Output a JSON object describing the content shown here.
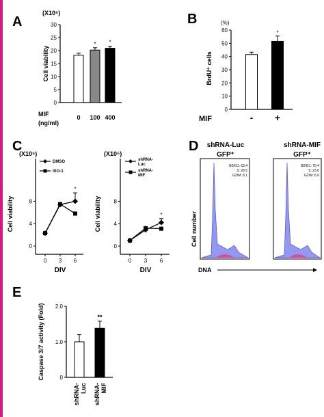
{
  "colors": {
    "edge_bar": "#d81b7a",
    "bar_open": "#ffffff",
    "bar_gray": "#888888",
    "bar_black": "#000000",
    "hist_fill": "#8a8df0",
    "hist_pink": "#e0408c"
  },
  "chart_data": [
    {
      "id": "A",
      "type": "bar",
      "panel_label": "A",
      "ylabel": "Cell viability",
      "y_unit": "(X10⁵)",
      "ylim": [
        0,
        30
      ],
      "yticks": [
        "0",
        "5",
        "10",
        "15",
        "20",
        "25",
        "30"
      ],
      "row_label": "MIF",
      "row_unit": "(ng/ml)",
      "categories": [
        "0",
        "100",
        "400"
      ],
      "values": [
        18.2,
        20.2,
        20.9
      ],
      "errors": [
        0.8,
        0.9,
        0.8
      ],
      "significance": [
        "",
        "*",
        "*"
      ]
    },
    {
      "id": "B",
      "type": "bar",
      "panel_label": "B",
      "ylabel": "BrdU⁺ cells",
      "y_unit": "(%)",
      "ylim": [
        0,
        60
      ],
      "yticks": [
        "0",
        "10",
        "20",
        "30",
        "40",
        "50",
        "60"
      ],
      "row_label": "MIF",
      "categories": [
        "-",
        "+"
      ],
      "values": [
        41.5,
        51.5
      ],
      "errors": [
        1.8,
        4.0
      ],
      "significance": [
        "",
        "*"
      ]
    },
    {
      "id": "C1",
      "type": "line",
      "panel_label": "C",
      "ylabel": "Cell viability",
      "y_unit": "(X10⁵)",
      "xlabel": "DIV",
      "x": [
        0,
        3,
        6
      ],
      "xticks": [
        "0",
        "3",
        "6"
      ],
      "ylim": [
        0,
        10
      ],
      "yticks": [
        "0",
        "4",
        "8"
      ],
      "series": [
        {
          "name": "DMSO",
          "values": [
            2.3,
            7.4,
            8.0
          ],
          "errors": [
            0,
            0,
            1.5
          ],
          "marker": "diamond"
        },
        {
          "name": "ISO-1",
          "values": [
            2.3,
            7.5,
            5.8
          ],
          "errors": [
            0,
            0,
            0.3
          ],
          "marker": "square"
        }
      ],
      "significance_note": "*"
    },
    {
      "id": "C2",
      "type": "line",
      "ylabel": "Cell viability",
      "y_unit": "(X10⁵)",
      "xlabel": "DIV",
      "x": [
        0,
        3,
        6
      ],
      "xticks": [
        "0",
        "3",
        "6"
      ],
      "ylim": [
        0,
        10
      ],
      "yticks": [
        "0",
        "4",
        "8"
      ],
      "series": [
        {
          "name": "shRNA-Luc",
          "values": [
            1.0,
            2.9,
            4.2
          ],
          "errors": [
            0,
            0,
            0.7
          ],
          "marker": "diamond"
        },
        {
          "name": "shRNA-MIF",
          "values": [
            1.0,
            3.2,
            3.1
          ],
          "errors": [
            0,
            0,
            0.2
          ],
          "marker": "square"
        }
      ],
      "significance_note": "*"
    },
    {
      "id": "D",
      "type": "histogram",
      "panel_label": "D",
      "ylabel": "Cell number",
      "xlabel": "DNA",
      "plots": [
        {
          "title": "shRNA-Luc",
          "subtitle": "GFP⁺",
          "stats": [
            "G0/G1: 63.4",
            "S: 28.5",
            "G2/M: 8.1"
          ]
        },
        {
          "title": "shRNA-MIF",
          "subtitle": "GFP⁺",
          "stats": [
            "G0/G1: 70.4",
            "S: 23.0",
            "G2/M: 6.6"
          ]
        }
      ]
    },
    {
      "id": "E",
      "type": "bar",
      "panel_label": "E",
      "ylabel": "Caspase 3/7 activity (Fold)",
      "ylim": [
        0,
        2.0
      ],
      "yticks": [
        "0",
        "1.0",
        "2.0"
      ],
      "categories": [
        "shRNA-Luc",
        "shRNA-MIF"
      ],
      "values": [
        1.0,
        1.38
      ],
      "errors": [
        0.2,
        0.2
      ],
      "significance": [
        "",
        "**"
      ]
    }
  ]
}
